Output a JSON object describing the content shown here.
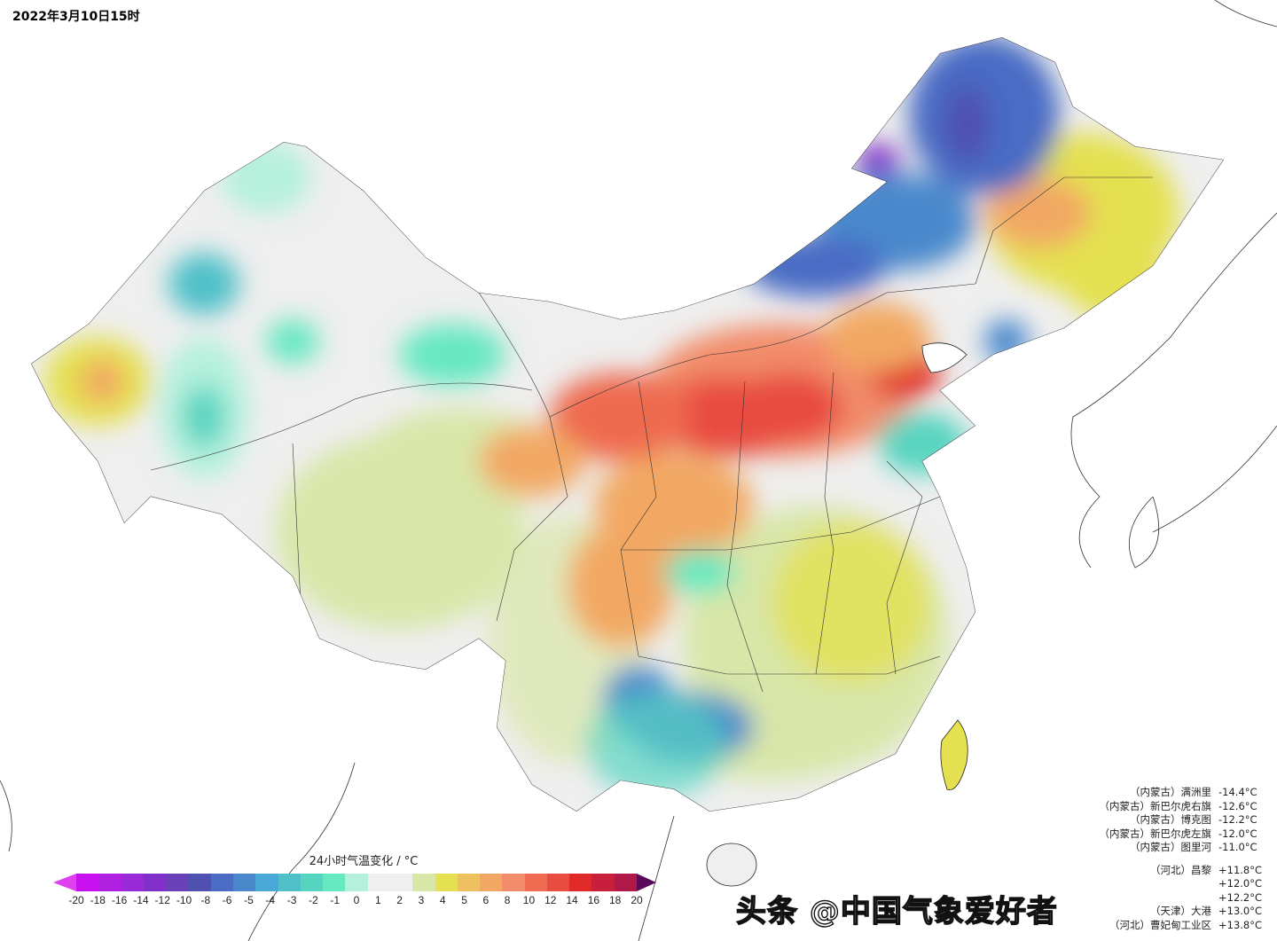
{
  "title": "2022年3月10日15时",
  "legend": {
    "title": "24小时气温变化 / °C",
    "ticks": [
      "-20",
      "-18",
      "-16",
      "-14",
      "-12",
      "-10",
      "-8",
      "-6",
      "-5",
      "-4",
      "-3",
      "-2",
      "-1",
      "0",
      "1",
      "2",
      "3",
      "4",
      "5",
      "6",
      "8",
      "10",
      "12",
      "14",
      "16",
      "18",
      "20"
    ],
    "colors": [
      "#c810f0",
      "#b020e0",
      "#9a2ad8",
      "#8030c8",
      "#6a40b8",
      "#5050b0",
      "#4a6cc4",
      "#4a88cc",
      "#4aa8d8",
      "#50c0c8",
      "#56d4c0",
      "#66e8c0",
      "#b4f0dc",
      "#efefef",
      "#efefef",
      "#d8e6a8",
      "#e4e050",
      "#eec060",
      "#f2a864",
      "#f28c6a",
      "#ee6a50",
      "#e84c40",
      "#e02a2a",
      "#c8203c",
      "#b01848",
      "#981054",
      "#7a0a5c"
    ],
    "under_color": "#e040f0",
    "over_color": "#5a0a5a"
  },
  "stations_cold": [
    {
      "name": "（内蒙古）满洲里",
      "value": "-14.4°C"
    },
    {
      "name": "（内蒙古）新巴尔虎右旗",
      "value": "-12.6°C"
    },
    {
      "name": "（内蒙古）博克图",
      "value": "-12.2°C"
    },
    {
      "name": "（内蒙古）新巴尔虎左旗",
      "value": "-12.0°C"
    },
    {
      "name": "（内蒙古）图里河",
      "value": "-11.0°C"
    }
  ],
  "stations_warm": [
    {
      "name": "（河北）昌黎",
      "value": "+11.8°C"
    },
    {
      "name": "",
      "value": "+12.0°C"
    },
    {
      "name": "",
      "value": "+12.2°C"
    },
    {
      "name": "（天津）大港",
      "value": "+13.0°C"
    },
    {
      "name": "（河北）曹妃甸工业区",
      "value": "+13.8°C"
    }
  ],
  "watermark": "头条 @中国气象爱好者"
}
